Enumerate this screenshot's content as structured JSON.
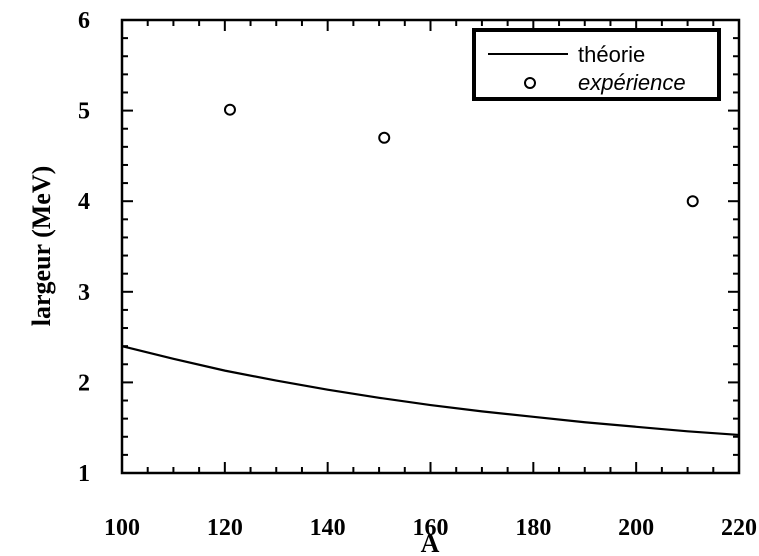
{
  "chart_data": {
    "type": "line",
    "xlabel": "A",
    "ylabel": "largeur  (MeV)",
    "xlim": [
      100,
      220
    ],
    "ylim": [
      1,
      6
    ],
    "xticks": [
      100,
      120,
      140,
      160,
      180,
      200,
      220
    ],
    "yticks": [
      1,
      2,
      3,
      4,
      5,
      6
    ],
    "grid": false,
    "legend_position": "top-right",
    "series": [
      {
        "name": "théorie",
        "style": "line",
        "color": "#000000",
        "x": [
          100,
          110,
          120,
          130,
          140,
          150,
          160,
          170,
          180,
          190,
          200,
          210,
          220
        ],
        "y": [
          2.4,
          2.26,
          2.13,
          2.02,
          1.92,
          1.83,
          1.75,
          1.68,
          1.62,
          1.56,
          1.51,
          1.46,
          1.42
        ]
      },
      {
        "name": "expérience",
        "style": "marker-open-circle",
        "color": "#000000",
        "x": [
          121,
          151,
          211
        ],
        "y": [
          5.01,
          4.7,
          4.0
        ]
      }
    ]
  }
}
